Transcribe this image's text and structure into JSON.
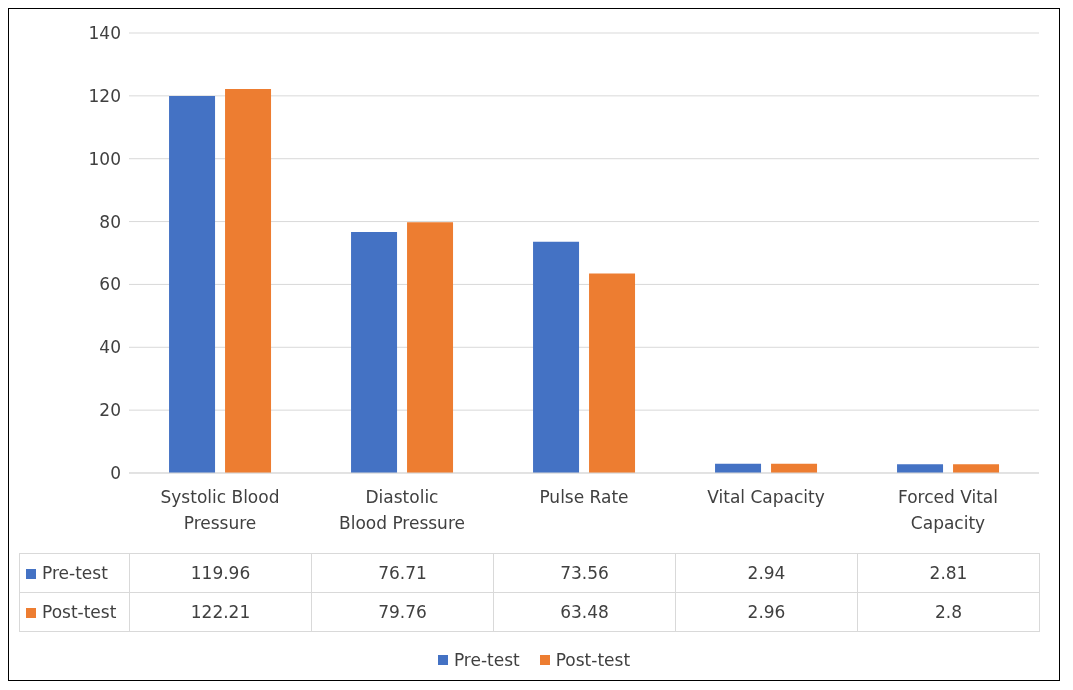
{
  "chart_data": {
    "type": "bar",
    "categories": [
      "Systolic Blood Pressure",
      "Diastolic Blood Pressure",
      "Pulse Rate",
      "Vital Capacity",
      "Forced Vital Capacity"
    ],
    "series": [
      {
        "name": "Pre-test",
        "color": "#4472c4",
        "values": [
          119.96,
          76.71,
          73.56,
          2.94,
          2.81
        ]
      },
      {
        "name": "Post-test",
        "color": "#ed7d31",
        "values": [
          122.21,
          79.76,
          63.48,
          2.96,
          2.8
        ]
      }
    ],
    "ylim": [
      0,
      140
    ],
    "yticks": [
      0,
      20,
      40,
      60,
      80,
      100,
      120,
      140
    ],
    "grid": "y",
    "legend": "bottom",
    "data_labels": true
  }
}
